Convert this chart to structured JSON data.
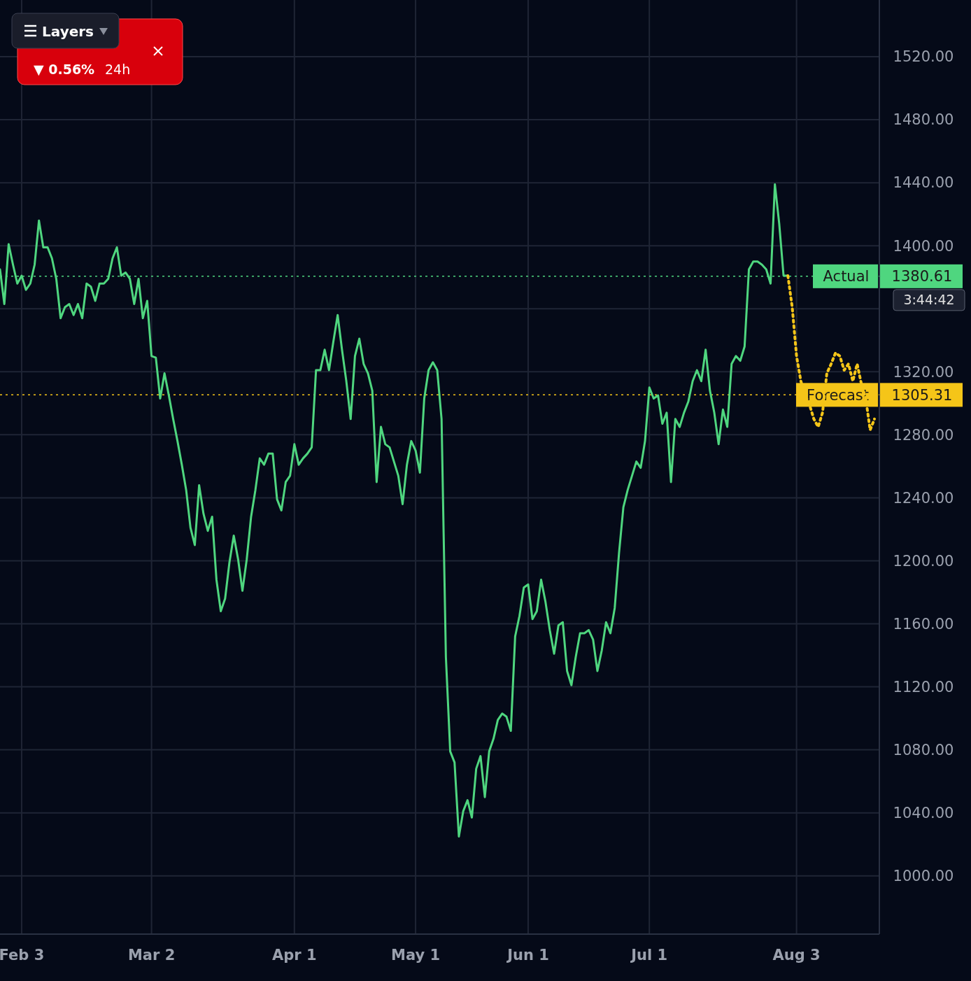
{
  "chart_data": {
    "type": "line",
    "grid": true,
    "ylim": [
      963,
      1556
    ],
    "categories": [
      null,
      null,
      null,
      null,
      null,
      "Feb 3",
      null,
      null,
      null,
      null,
      null,
      null,
      null,
      null,
      null,
      null,
      null,
      null,
      null,
      null,
      null,
      null,
      null,
      null,
      null,
      null,
      null,
      null,
      null,
      null,
      null,
      null,
      null,
      null,
      null,
      "Mar 2",
      null,
      null,
      null,
      null,
      null,
      null,
      null,
      null,
      null,
      null,
      null,
      null,
      null,
      null,
      null,
      null,
      null,
      null,
      null,
      null,
      null,
      null,
      null,
      null,
      null,
      null,
      null,
      null,
      null,
      null,
      null,
      null,
      "Apr 1",
      null,
      null,
      null,
      null,
      null,
      null,
      null,
      null,
      null,
      null,
      null,
      null,
      null,
      null,
      null,
      null,
      null,
      null,
      null,
      null,
      null,
      null,
      null,
      null,
      null,
      null,
      null,
      "May 1",
      null,
      null,
      null,
      null,
      null,
      null,
      null,
      null,
      null,
      null,
      null,
      null,
      null,
      null,
      null,
      null,
      null,
      null,
      null,
      null,
      null,
      null,
      null,
      null,
      null,
      "Jun 1",
      null,
      null,
      null,
      null,
      null,
      null,
      null,
      null,
      null,
      null,
      null,
      null,
      null,
      null,
      null,
      null,
      null,
      null,
      null,
      null,
      null,
      null,
      null,
      null,
      null,
      null,
      null,
      "Jul 1",
      null,
      null,
      null,
      null,
      null,
      null,
      null,
      null,
      null,
      null,
      null,
      null,
      null,
      null,
      null,
      null,
      null,
      null,
      null,
      null,
      null,
      null,
      null,
      null,
      null,
      null,
      null,
      null,
      null,
      null,
      null,
      null,
      null,
      "Aug 3",
      null,
      null,
      null,
      null,
      null,
      null,
      null,
      null,
      null,
      null,
      null,
      null,
      null,
      null,
      null,
      null,
      null,
      null
    ],
    "yticks": [
      {
        "value": 1000,
        "label": "1000.00"
      },
      {
        "value": 1040,
        "label": "1040.00"
      },
      {
        "value": 1080,
        "label": "1080.00"
      },
      {
        "value": 1120,
        "label": "1120.00"
      },
      {
        "value": 1160,
        "label": "1160.00"
      },
      {
        "value": 1200,
        "label": "1200.00"
      },
      {
        "value": 1240,
        "label": "1240.00"
      },
      {
        "value": 1280,
        "label": "1280.00"
      },
      {
        "value": 1320,
        "label": "1320.00"
      },
      {
        "value": 1360,
        "label": null
      },
      {
        "value": 1400,
        "label": "1400.00"
      },
      {
        "value": 1440,
        "label": "1440.00"
      },
      {
        "value": 1480,
        "label": "1480.00"
      },
      {
        "value": 1520,
        "label": "1520.00"
      }
    ],
    "series": [
      {
        "color": "#4fd67f",
        "line_style": "solid",
        "values": [
          1385,
          1363,
          1401,
          1388,
          1376,
          1381,
          1372,
          1376,
          1388,
          1416,
          1399,
          1399,
          1392,
          1379,
          1354,
          1361,
          1363,
          1356,
          1363,
          1354,
          1376,
          1374,
          1365,
          1376,
          1376,
          1379,
          1392,
          1399,
          1381,
          1383,
          1379,
          1363,
          1379,
          1354,
          1365,
          1330,
          1329,
          1303,
          1319,
          1305,
          1290,
          1276,
          1261,
          1245,
          1221,
          1210,
          1248,
          1230,
          1219,
          1228,
          1188,
          1168,
          1176,
          1199,
          1216,
          1201,
          1181,
          1201,
          1228,
          1245,
          1265,
          1261,
          1268,
          1268,
          1239,
          1232,
          1250,
          1254,
          1274,
          1261,
          1265,
          1268,
          1272,
          1321,
          1321,
          1334,
          1321,
          1339,
          1356,
          1334,
          1314,
          1290,
          1330,
          1341,
          1325,
          1319,
          1308,
          1250,
          1285,
          1274,
          1272,
          1263,
          1254,
          1236,
          1261,
          1276,
          1270,
          1256,
          1303,
          1321,
          1326,
          1321,
          1290,
          1139,
          1079,
          1072,
          1025,
          1041,
          1048,
          1037,
          1068,
          1076,
          1050,
          1079,
          1087,
          1099,
          1103,
          1101,
          1092,
          1152,
          1165,
          1183,
          1185,
          1163,
          1168,
          1188,
          1174,
          1156,
          1141,
          1159,
          1161,
          1130,
          1121,
          1139,
          1154,
          1154,
          1156,
          1150,
          1130,
          1143,
          1161,
          1154,
          1170,
          1205,
          1234,
          1245,
          1254,
          1263,
          1259,
          1276,
          1310,
          1303,
          1305,
          1287,
          1294,
          1250,
          1290,
          1285,
          1294,
          1301,
          1314,
          1321,
          1314,
          1334,
          1308,
          1294,
          1274,
          1296,
          1285,
          1325,
          1330,
          1327,
          1336,
          1385,
          1390,
          1390,
          1388,
          1385,
          1376,
          1439,
          1414,
          1381,
          1381,
          null,
          null,
          null,
          null,
          null,
          null,
          null,
          null,
          null,
          null,
          null,
          null,
          null,
          null,
          null,
          null,
          null,
          null,
          null,
          null
        ]
      },
      {
        "color": "#f5c518",
        "line_style": "dotted",
        "values": [
          null,
          null,
          null,
          null,
          null,
          null,
          null,
          null,
          null,
          null,
          null,
          null,
          null,
          null,
          null,
          null,
          null,
          null,
          null,
          null,
          null,
          null,
          null,
          null,
          null,
          null,
          null,
          null,
          null,
          null,
          null,
          null,
          null,
          null,
          null,
          null,
          null,
          null,
          null,
          null,
          null,
          null,
          null,
          null,
          null,
          null,
          null,
          null,
          null,
          null,
          null,
          null,
          null,
          null,
          null,
          null,
          null,
          null,
          null,
          null,
          null,
          null,
          null,
          null,
          null,
          null,
          null,
          null,
          null,
          null,
          null,
          null,
          null,
          null,
          null,
          null,
          null,
          null,
          null,
          null,
          null,
          null,
          null,
          null,
          null,
          null,
          null,
          null,
          null,
          null,
          null,
          null,
          null,
          null,
          null,
          null,
          null,
          null,
          null,
          null,
          null,
          null,
          null,
          null,
          null,
          null,
          null,
          null,
          null,
          null,
          null,
          null,
          null,
          null,
          null,
          null,
          null,
          null,
          null,
          null,
          null,
          null,
          null,
          null,
          null,
          null,
          null,
          null,
          null,
          null,
          null,
          null,
          null,
          null,
          null,
          null,
          null,
          null,
          null,
          null,
          null,
          null,
          null,
          null,
          null,
          null,
          null,
          null,
          null,
          null,
          null,
          null,
          null,
          null,
          null,
          null,
          null,
          null,
          null,
          null,
          null,
          null,
          null,
          null,
          null,
          null,
          null,
          null,
          null,
          null,
          null,
          null,
          null,
          null,
          null,
          null,
          null,
          null,
          null,
          null,
          null,
          null,
          1381,
          1361,
          1330,
          1314,
          1305,
          1299,
          1290,
          1285,
          1294,
          1319,
          1325,
          1332,
          1330,
          1321,
          1325,
          1314,
          1325,
          1312,
          1303,
          1283,
          1290
        ]
      }
    ],
    "ref_lines": [
      {
        "axis": "y",
        "value": 1380.61,
        "label": "Actual",
        "color": "#4fd67f",
        "line_style": "dotted"
      },
      {
        "axis": "y",
        "value": 1305.31,
        "label": "Forecast",
        "color": "#f5c518",
        "line_style": "dotted"
      }
    ],
    "annotations": [
      "1380.61",
      "1305.31",
      "3:44:42",
      "Layers",
      "▼ 0.56%",
      "24h"
    ]
  }
}
